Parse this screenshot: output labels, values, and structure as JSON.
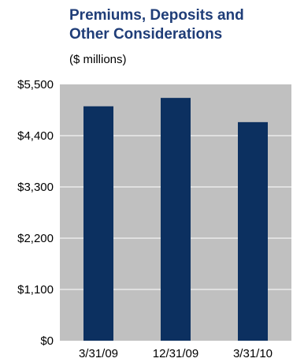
{
  "chart_data": {
    "type": "bar",
    "title_lines": [
      "Premiums, Deposits and",
      "Other Considerations"
    ],
    "subtitle": "($ millions)",
    "categories": [
      "3/31/09",
      "12/31/09",
      "3/31/10"
    ],
    "values": [
      5030,
      5210,
      4690
    ],
    "ylim": [
      0,
      5500
    ],
    "yticks": [
      0,
      1100,
      2200,
      3300,
      4400,
      5500
    ],
    "ytick_labels": [
      "$0",
      "$1,100",
      "$2,200",
      "$3,300",
      "$4,400",
      "$5,500"
    ],
    "grid": true,
    "colors": {
      "bar": "#0c3060",
      "plot_background": "#c0c0c0",
      "grid": "#ffffff",
      "title": "#1f3d78"
    }
  }
}
